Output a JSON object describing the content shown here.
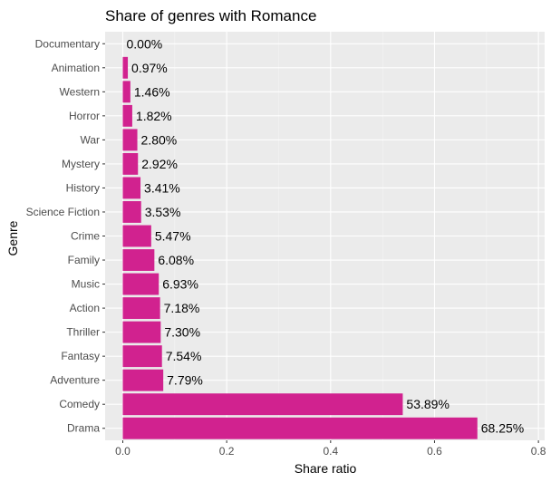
{
  "chart_data": {
    "type": "bar",
    "orientation": "horizontal",
    "title": "Share of genres with Romance",
    "xlabel": "Share ratio",
    "ylabel": "Genre",
    "categories": [
      "Documentary",
      "Animation",
      "Western",
      "Horror",
      "War",
      "Mystery",
      "History",
      "Science Fiction",
      "Crime",
      "Family",
      "Music",
      "Action",
      "Thriller",
      "Fantasy",
      "Adventure",
      "Comedy",
      "Drama"
    ],
    "values": [
      0.0,
      0.0097,
      0.0146,
      0.0182,
      0.028,
      0.0292,
      0.0341,
      0.0353,
      0.0547,
      0.0608,
      0.0693,
      0.0718,
      0.073,
      0.0754,
      0.0779,
      0.5389,
      0.6825
    ],
    "data_labels": [
      "0.00%",
      "0.97%",
      "1.46%",
      "1.82%",
      "2.80%",
      "2.92%",
      "3.41%",
      "3.53%",
      "5.47%",
      "6.08%",
      "6.93%",
      "7.18%",
      "7.30%",
      "7.54%",
      "7.79%",
      "53.89%",
      "68.25%"
    ],
    "xlim": [
      -0.034,
      0.812
    ],
    "x_ticks": [
      0,
      0.2,
      0.4,
      0.6,
      0.8
    ],
    "x_tick_labels": [
      "0.0",
      "0.2",
      "0.4",
      "0.6",
      "0.8"
    ],
    "grid": true,
    "legend": "none",
    "colors": {
      "bar": "#d1228f",
      "panel": "#ebebeb",
      "grid_major": "#ffffff",
      "grid_minor": "#f5f5f5",
      "tick_text": "#4d4d4d",
      "tick_mark": "#333333"
    }
  }
}
